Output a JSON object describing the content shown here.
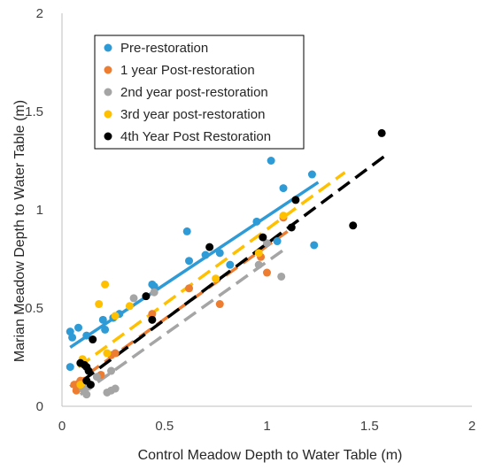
{
  "chart_data": {
    "type": "scatter",
    "xlabel": "Control Meadow Depth to Water Table (m)",
    "ylabel": "Marian Meadow  Depth to Water Table (m)",
    "xlim": [
      0,
      2
    ],
    "ylim": [
      0,
      2
    ],
    "x_ticks": [
      "0",
      "0.5",
      "1",
      "1.5",
      "2"
    ],
    "y_ticks": [
      "0",
      "0.5",
      "1",
      "1.5",
      "2"
    ],
    "grid": false,
    "legend_position": "top-left",
    "series": [
      {
        "name": "Pre-restoration",
        "color": "#2E9BD6",
        "trendline_style": "solid",
        "trendline": [
          [
            0.04,
            0.3
          ],
          [
            1.25,
            1.14
          ]
        ],
        "points": [
          [
            0.04,
            0.38
          ],
          [
            0.05,
            0.35
          ],
          [
            0.04,
            0.2
          ],
          [
            0.08,
            0.4
          ],
          [
            0.12,
            0.36
          ],
          [
            0.2,
            0.44
          ],
          [
            0.21,
            0.39
          ],
          [
            0.25,
            0.45
          ],
          [
            0.28,
            0.47
          ],
          [
            0.44,
            0.62
          ],
          [
            0.45,
            0.61
          ],
          [
            0.61,
            0.89
          ],
          [
            0.62,
            0.74
          ],
          [
            0.7,
            0.77
          ],
          [
            0.77,
            0.78
          ],
          [
            0.82,
            0.72
          ],
          [
            0.95,
            0.94
          ],
          [
            1.02,
            1.25
          ],
          [
            1.05,
            0.84
          ],
          [
            1.08,
            1.11
          ],
          [
            1.22,
            1.18
          ],
          [
            1.23,
            0.82
          ]
        ]
      },
      {
        "name": "1 year Post-restoration",
        "color": "#ED7D31",
        "trendline_style": "dashed",
        "trendline": [
          [
            0.04,
            0.1
          ],
          [
            1.1,
            0.89
          ]
        ],
        "points": [
          [
            0.06,
            0.11
          ],
          [
            0.07,
            0.08
          ],
          [
            0.09,
            0.13
          ],
          [
            0.11,
            0.13
          ],
          [
            0.19,
            0.16
          ],
          [
            0.24,
            0.26
          ],
          [
            0.26,
            0.27
          ],
          [
            0.44,
            0.47
          ],
          [
            0.62,
            0.6
          ],
          [
            0.77,
            0.52
          ],
          [
            0.97,
            0.76
          ],
          [
            1.0,
            0.68
          ],
          [
            1.08,
            0.96
          ]
        ]
      },
      {
        "name": "2nd year post-restoration",
        "color": "#A5A5A5",
        "trendline_style": "dashed",
        "trendline": [
          [
            0.09,
            0.06
          ],
          [
            1.1,
            0.81
          ]
        ],
        "points": [
          [
            0.1,
            0.09
          ],
          [
            0.12,
            0.06
          ],
          [
            0.13,
            0.1
          ],
          [
            0.17,
            0.15
          ],
          [
            0.22,
            0.07
          ],
          [
            0.24,
            0.08
          ],
          [
            0.26,
            0.09
          ],
          [
            0.24,
            0.18
          ],
          [
            0.35,
            0.55
          ],
          [
            0.45,
            0.58
          ],
          [
            0.96,
            0.72
          ],
          [
            1.0,
            0.83
          ],
          [
            1.07,
            0.66
          ]
        ]
      },
      {
        "name": "3rd year post-restoration",
        "color": "#FFC000",
        "trendline_style": "dashed",
        "trendline": [
          [
            0.08,
            0.2
          ],
          [
            1.38,
            1.19
          ]
        ],
        "points": [
          [
            0.09,
            0.11
          ],
          [
            0.1,
            0.24
          ],
          [
            0.18,
            0.52
          ],
          [
            0.21,
            0.62
          ],
          [
            0.22,
            0.27
          ],
          [
            0.26,
            0.46
          ],
          [
            0.33,
            0.51
          ],
          [
            0.75,
            0.65
          ],
          [
            0.96,
            0.78
          ],
          [
            1.08,
            0.97
          ]
        ]
      },
      {
        "name": "4th Year Post Restoration",
        "color": "#000000",
        "trendline_style": "dashed",
        "trendline": [
          [
            0.1,
            0.13
          ],
          [
            1.57,
            1.27
          ]
        ],
        "points": [
          [
            0.09,
            0.22
          ],
          [
            0.11,
            0.21
          ],
          [
            0.12,
            0.2
          ],
          [
            0.12,
            0.13
          ],
          [
            0.13,
            0.18
          ],
          [
            0.14,
            0.11
          ],
          [
            0.15,
            0.34
          ],
          [
            0.41,
            0.56
          ],
          [
            0.44,
            0.44
          ],
          [
            0.72,
            0.81
          ],
          [
            0.98,
            0.86
          ],
          [
            1.12,
            0.91
          ],
          [
            1.14,
            1.05
          ],
          [
            1.42,
            0.92
          ],
          [
            1.56,
            1.39
          ]
        ]
      }
    ]
  }
}
